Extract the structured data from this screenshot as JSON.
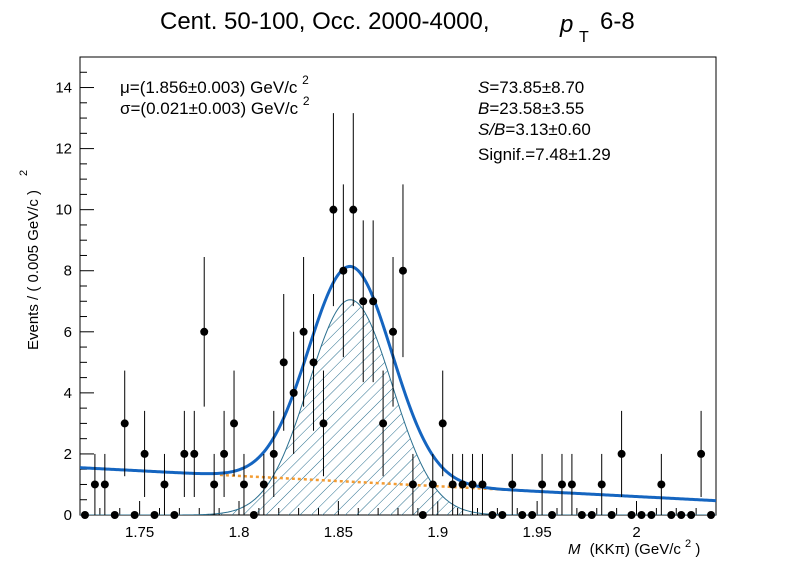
{
  "chart_data": {
    "type": "scatter",
    "title_main": "Cent. 50-100, Occ. 2000-4000,",
    "title_pt": "p",
    "title_pt_sub": "T",
    "title_range": "6-8",
    "ylabel": "Events / ( 0.005 GeV/c  )",
    "ylabel_sup": "2",
    "xlabel_var": "M",
    "xlabel_rest": "(KKπ) (GeV/c",
    "xlabel_sup": "2",
    "xlabel_close": ")",
    "xlim": [
      1.72,
      2.04
    ],
    "ylim": [
      0,
      15
    ],
    "x_ticks": [
      1.75,
      1.8,
      1.85,
      1.9,
      1.95,
      2.0
    ],
    "x_tick_labels": [
      "1.75",
      "1.8",
      "1.85",
      "1.9",
      "1.95",
      "2"
    ],
    "y_ticks": [
      0,
      2,
      4,
      6,
      8,
      10,
      12,
      14
    ],
    "y_tick_labels": [
      "0",
      "2",
      "4",
      "6",
      "8",
      "10",
      "12",
      "14"
    ],
    "grid": false,
    "annotations": {
      "mu_line": "μ=(1.856±0.003) GeV/c",
      "mu_sup": "2",
      "sigma_line": "σ=(0.021±0.003) GeV/c",
      "sigma_sup": "2",
      "S_label": "S",
      "S_value": "=73.85±8.70",
      "B_label": "B",
      "B_value": "=23.58±3.55",
      "SB_label": "S/B",
      "SB_value": "=3.13±0.60",
      "signif_line": "Signif.=7.48±1.29"
    },
    "fit": {
      "mean": 1.856,
      "sigma": 0.021,
      "signal_amplitude": 7.05,
      "background_start": 1.55,
      "background_end": 0.47,
      "fit_color": "#1565c0",
      "background_color": "#f39c33",
      "signal_color": "#2a6f8f"
    },
    "series": [
      {
        "x": [
          1.7225,
          1.7275,
          1.7325,
          1.7375,
          1.7425,
          1.7475,
          1.7525,
          1.7575,
          1.7625,
          1.7675,
          1.7725,
          1.7775,
          1.7825,
          1.7875,
          1.7925,
          1.7975,
          1.8025,
          1.8075,
          1.8125,
          1.8175,
          1.8225,
          1.8275,
          1.8325,
          1.8375,
          1.8425,
          1.8475,
          1.8525,
          1.8575,
          1.8625,
          1.8675,
          1.8725,
          1.8775,
          1.8825,
          1.8875,
          1.8925,
          1.8975,
          1.9025,
          1.9075,
          1.9125,
          1.9175,
          1.9225,
          1.9275,
          1.9325,
          1.9375,
          1.9425,
          1.9475,
          1.9525,
          1.9575,
          1.9625,
          1.9675,
          1.9725,
          1.9775,
          1.9825,
          1.9875,
          1.9925,
          1.9975,
          2.0025,
          2.0075,
          2.0125,
          2.0175,
          2.0225,
          2.0275,
          2.0325,
          2.0375
        ],
        "y": [
          0,
          1,
          1,
          0,
          3,
          0,
          2,
          0,
          1,
          0,
          2,
          2,
          6,
          1,
          2,
          3,
          1,
          0,
          1,
          2,
          5,
          4,
          6,
          5,
          3,
          10,
          8,
          10,
          7,
          7,
          3,
          6,
          8,
          1,
          0,
          1,
          3,
          1,
          1,
          1,
          1,
          0,
          0,
          1,
          0,
          0,
          1,
          0,
          1,
          1,
          0,
          0,
          1,
          0,
          2,
          0,
          0,
          0,
          1,
          0,
          0,
          0,
          2,
          0
        ],
        "y_err": [
          0,
          1,
          1,
          0,
          1.73,
          0,
          1.41,
          0,
          1,
          0,
          1.41,
          1.41,
          2.45,
          1,
          1.41,
          1.73,
          1,
          0,
          1,
          1.41,
          2.24,
          2,
          2.45,
          2.24,
          1.73,
          3.16,
          2.83,
          3.16,
          2.65,
          2.65,
          1.73,
          2.45,
          2.83,
          1,
          0,
          1,
          1.73,
          1,
          1,
          1,
          1,
          0,
          0,
          1,
          0,
          0,
          1,
          0,
          1,
          1,
          0,
          0,
          1,
          0,
          1.41,
          0,
          0,
          0,
          1,
          0,
          0,
          0,
          1.41,
          0
        ]
      }
    ]
  }
}
